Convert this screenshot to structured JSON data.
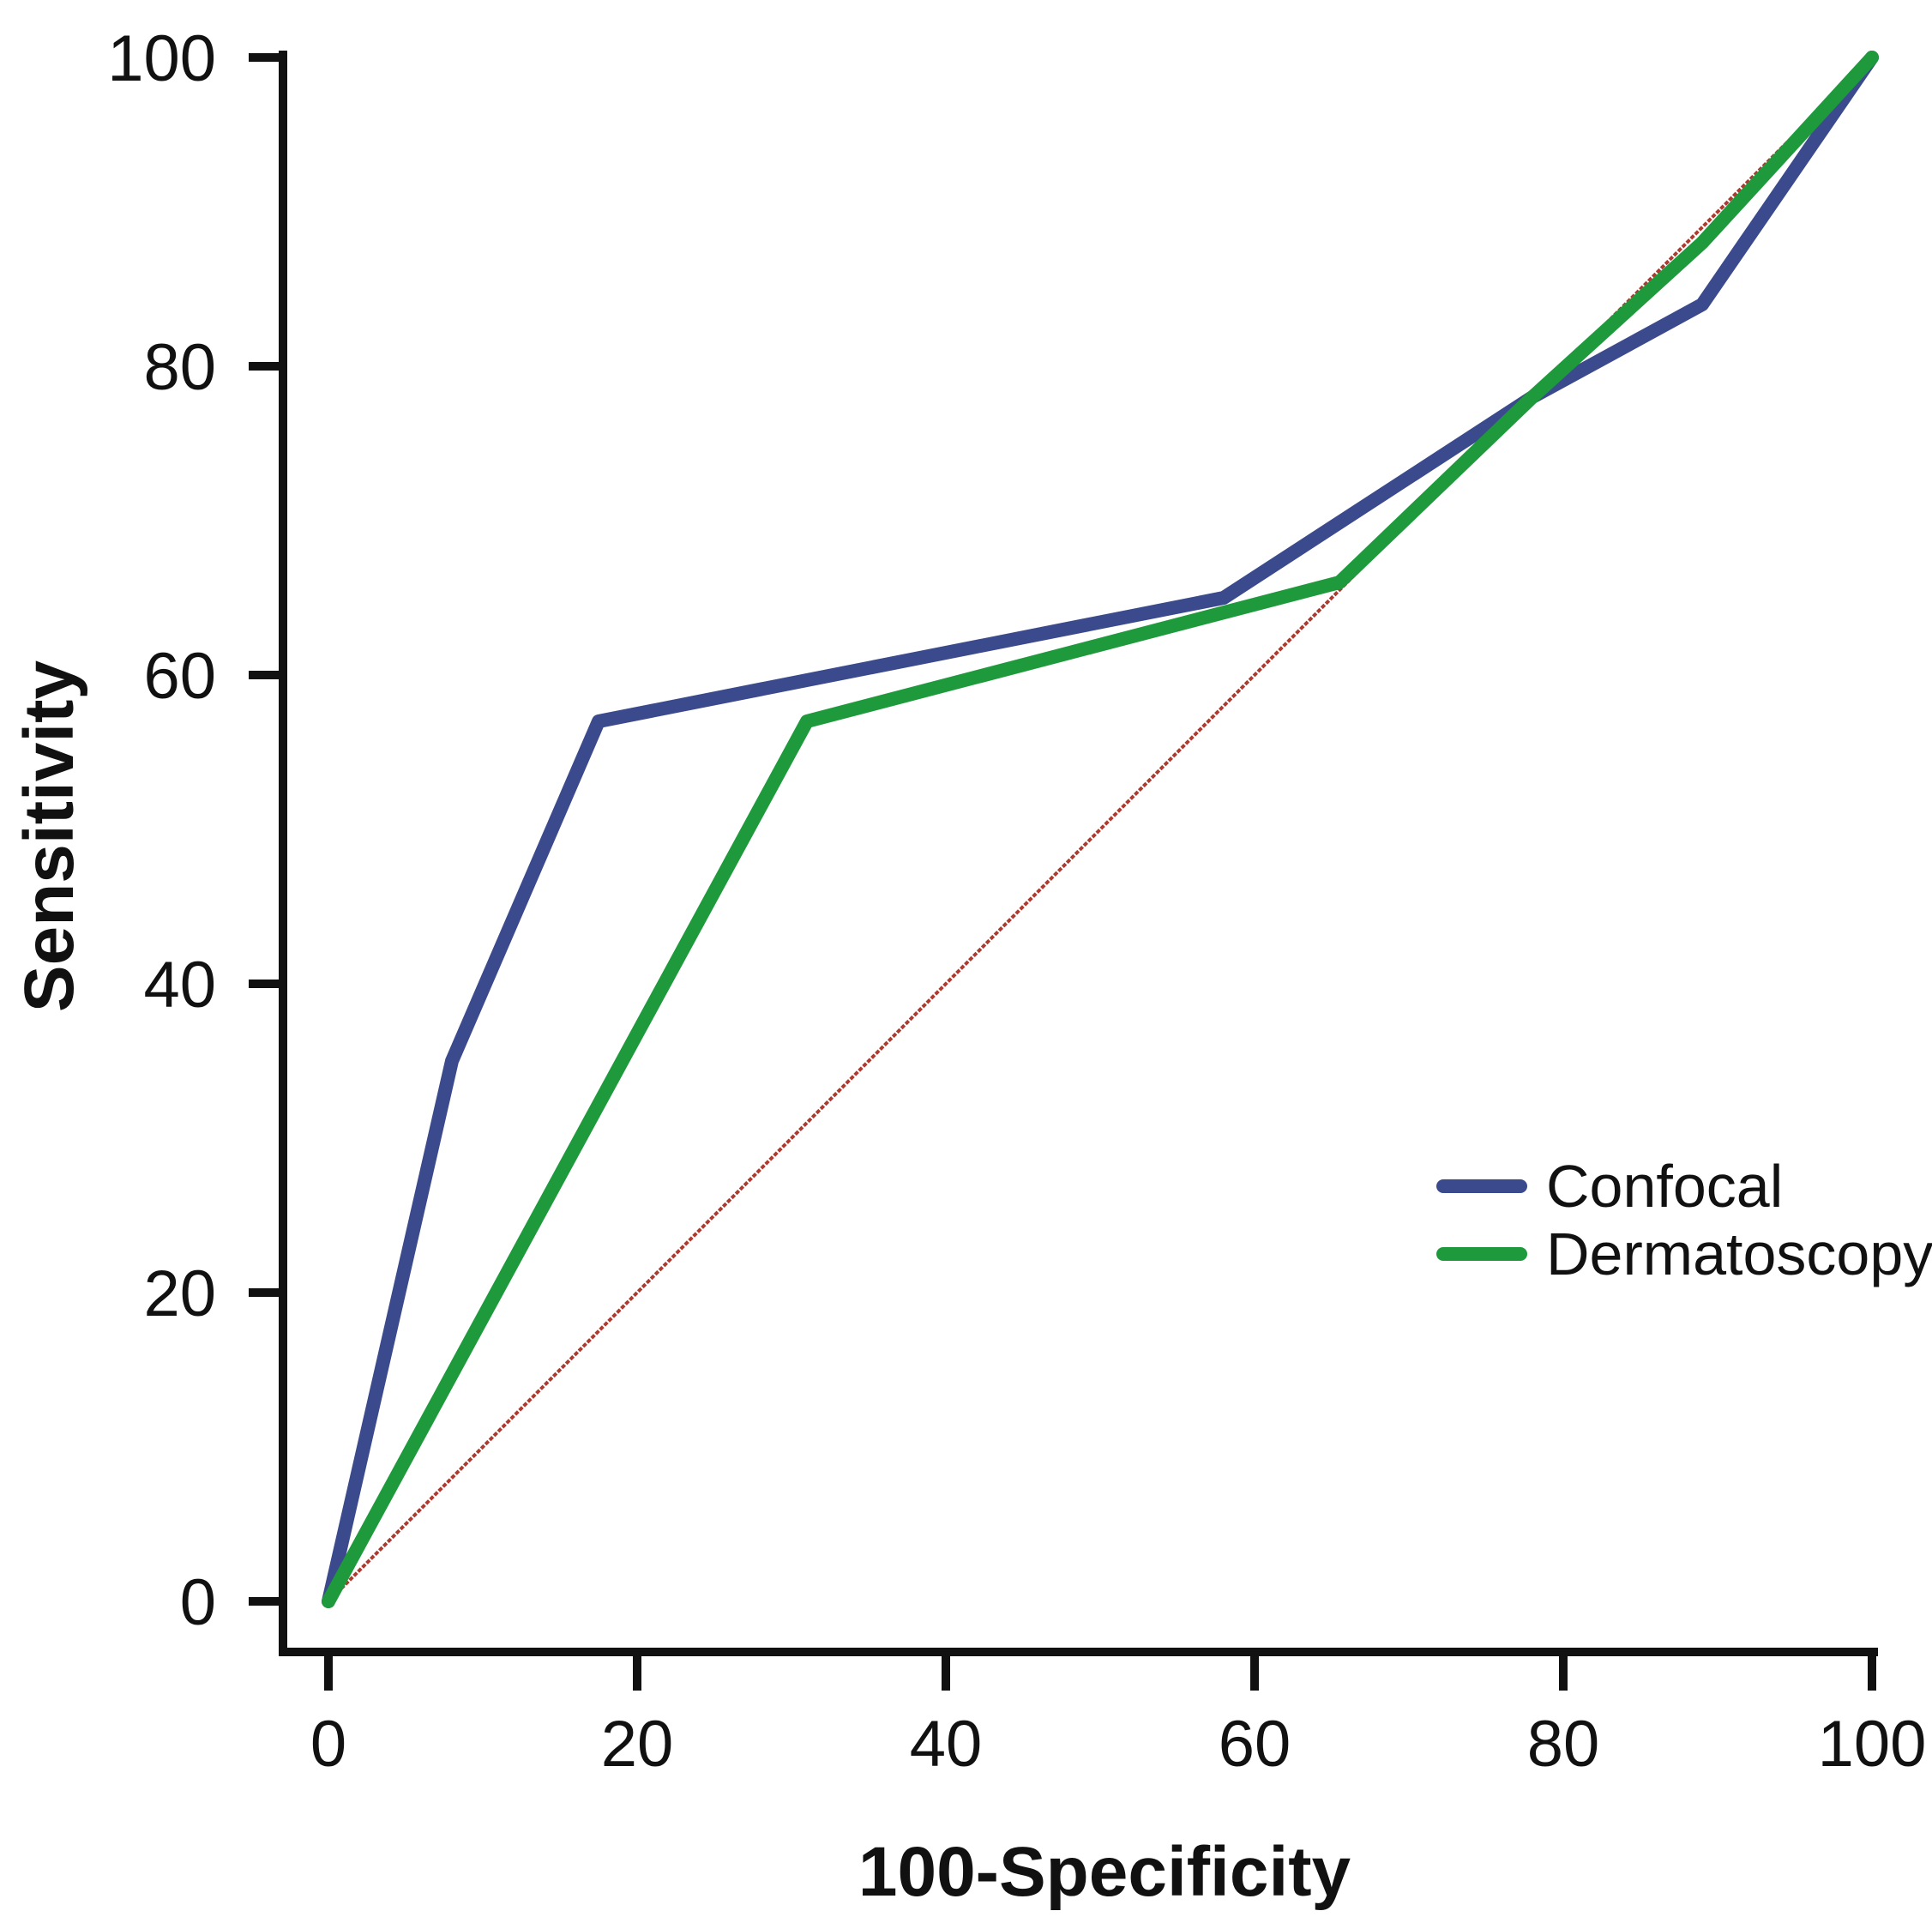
{
  "chart_data": {
    "type": "line",
    "title": "",
    "xlabel": "100-Specificity",
    "ylabel": "Sensitivity",
    "xlim": [
      0,
      100
    ],
    "ylim": [
      0,
      100
    ],
    "xticks": [
      0,
      20,
      40,
      60,
      80,
      100
    ],
    "yticks": [
      0,
      20,
      40,
      60,
      80,
      100
    ],
    "xtick_labels": [
      "0",
      "20",
      "40",
      "60",
      "80",
      "100"
    ],
    "ytick_labels": [
      "0",
      "20",
      "40",
      "60",
      "80",
      "100"
    ],
    "grid": false,
    "legend_position": "right",
    "reference_line": {
      "name": "chance",
      "color": "#b03a2e",
      "x": [
        0,
        100
      ],
      "y": [
        0,
        100
      ]
    },
    "series": [
      {
        "name": "Confocal",
        "color": "#3b4a8c",
        "x": [
          0,
          8,
          17.5,
          58,
          78,
          89,
          100
        ],
        "y": [
          0,
          35,
          57,
          65,
          78,
          84,
          100
        ]
      },
      {
        "name": "Dermatoscopy",
        "color": "#1e9a3c",
        "x": [
          0,
          31,
          65.5,
          78,
          89,
          100
        ],
        "y": [
          0,
          57,
          66,
          78,
          88,
          100
        ]
      }
    ]
  }
}
